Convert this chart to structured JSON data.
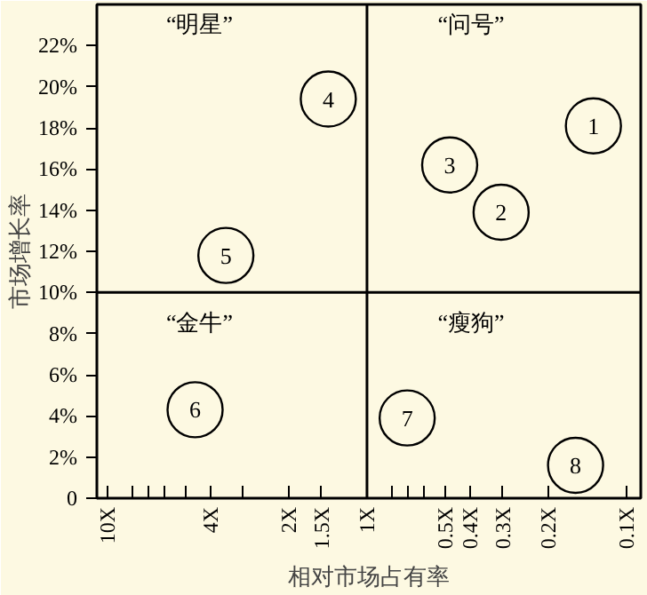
{
  "chart_data": {
    "type": "scatter",
    "xlabel": "相对市场占有率",
    "ylabel": "市场增长率",
    "log": "x",
    "marker": "circle",
    "grid": false,
    "x": [
      0.134,
      0.304,
      0.48,
      1.41,
      3.5,
      4.6,
      0.7,
      0.157
    ],
    "series": [
      {
        "color": "#000000",
        "values": [
          18.1,
          13.9,
          16.2,
          19.4,
          11.8,
          4.3,
          3.9,
          1.6
        ]
      }
    ],
    "xlim": [
      11,
      0.088
    ],
    "xticks": [
      {
        "value": 10,
        "label": "10X"
      },
      {
        "value": 8,
        "label": null
      },
      {
        "value": 7,
        "label": null
      },
      {
        "value": 6,
        "label": null
      },
      {
        "value": 5,
        "label": null
      },
      {
        "value": 4,
        "label": "4X"
      },
      {
        "value": 3,
        "label": null
      },
      {
        "value": 2,
        "label": "2X"
      },
      {
        "value": 1.5,
        "label": "1.5X"
      },
      {
        "value": 1,
        "label": "1X"
      },
      {
        "value": 0.8,
        "label": null
      },
      {
        "value": 0.7,
        "label": null
      },
      {
        "value": 0.6,
        "label": null
      },
      {
        "value": 0.5,
        "label": "0.5X"
      },
      {
        "value": 0.4,
        "label": "0.4X"
      },
      {
        "value": 0.3,
        "label": "0.3X"
      },
      {
        "value": 0.2,
        "label": "0.2X"
      },
      {
        "value": 0.1,
        "label": "0.1X"
      }
    ],
    "ylim": [
      0,
      24
    ],
    "yticks": [
      0,
      {
        "value": 2,
        "label": "2%"
      },
      {
        "value": 4,
        "label": "4%"
      },
      {
        "value": 6,
        "label": "6%"
      },
      {
        "value": 8,
        "label": "8%"
      },
      {
        "value": 10,
        "label": "10%"
      },
      {
        "value": 12,
        "label": "12%"
      },
      {
        "value": 14,
        "label": "14%"
      },
      {
        "value": 16,
        "label": "16%"
      },
      {
        "value": 18,
        "label": "18%"
      },
      {
        "value": 20,
        "label": "20%"
      },
      {
        "value": 22,
        "label": "22%"
      }
    ],
    "ref_lines": [
      {
        "axis": "x",
        "value": 1,
        "color": "#000000"
      },
      {
        "axis": "y",
        "value": 10,
        "color": "#000000"
      }
    ],
    "annotations": [
      {
        "text": "1",
        "x": 0.134,
        "y": 18.1
      },
      {
        "text": "2",
        "x": 0.304,
        "y": 13.9
      },
      {
        "text": "3",
        "x": 0.48,
        "y": 16.2
      },
      {
        "text": "4",
        "x": 1.41,
        "y": 19.4
      },
      {
        "text": "5",
        "x": 3.5,
        "y": 11.8
      },
      {
        "text": "6",
        "x": 4.6,
        "y": 4.3
      },
      {
        "text": "7",
        "x": 0.7,
        "y": 3.9
      },
      {
        "text": "8",
        "x": 0.157,
        "y": 1.6
      },
      "“明星”",
      "“问号”",
      "“金牛”",
      "“瘦狗”"
    ]
  }
}
